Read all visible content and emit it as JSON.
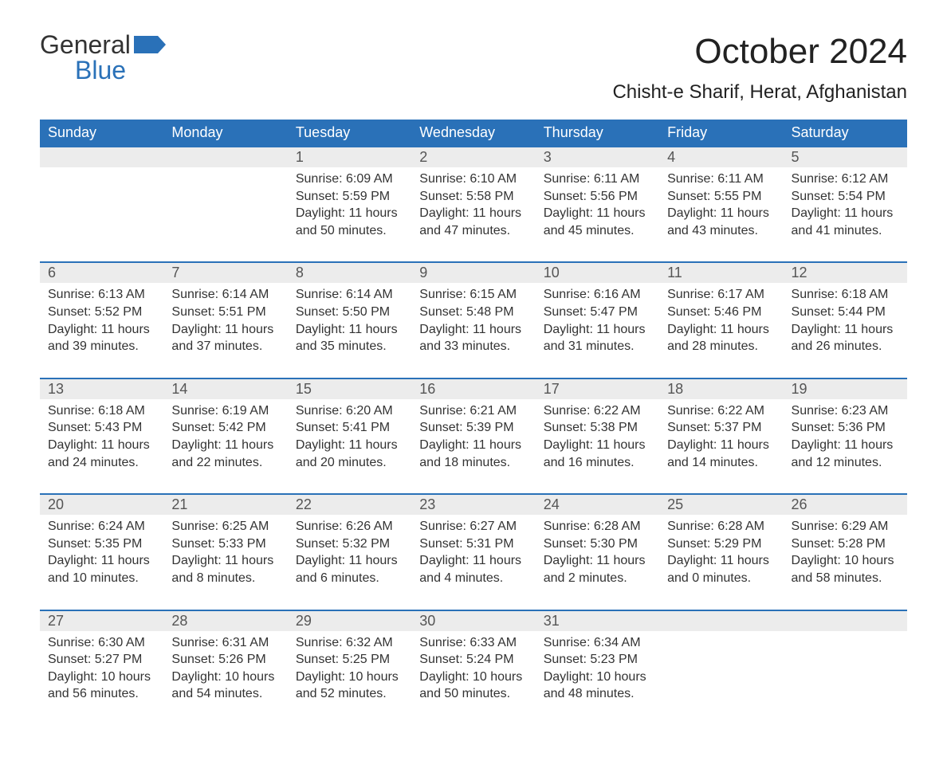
{
  "logo": {
    "text_top": "General",
    "text_bottom": "Blue"
  },
  "title": "October 2024",
  "location": "Chisht-e Sharif, Herat, Afghanistan",
  "colors": {
    "header_bg": "#2a71b8",
    "header_fg": "#ffffff",
    "daynum_bg": "#ececec",
    "row_separator": "#2a71b8",
    "text": "#333333",
    "logo_blue": "#2a71b8"
  },
  "layout": {
    "columns": 7,
    "rows": 5,
    "day_header_fontsize": 18,
    "daynum_fontsize": 18,
    "detail_fontsize": 16,
    "title_fontsize": 44,
    "location_fontsize": 24
  },
  "day_headers": [
    "Sunday",
    "Monday",
    "Tuesday",
    "Wednesday",
    "Thursday",
    "Friday",
    "Saturday"
  ],
  "weeks": [
    [
      null,
      null,
      {
        "n": "1",
        "sunrise": "Sunrise: 6:09 AM",
        "sunset": "Sunset: 5:59 PM",
        "daylight": "Daylight: 11 hours and 50 minutes."
      },
      {
        "n": "2",
        "sunrise": "Sunrise: 6:10 AM",
        "sunset": "Sunset: 5:58 PM",
        "daylight": "Daylight: 11 hours and 47 minutes."
      },
      {
        "n": "3",
        "sunrise": "Sunrise: 6:11 AM",
        "sunset": "Sunset: 5:56 PM",
        "daylight": "Daylight: 11 hours and 45 minutes."
      },
      {
        "n": "4",
        "sunrise": "Sunrise: 6:11 AM",
        "sunset": "Sunset: 5:55 PM",
        "daylight": "Daylight: 11 hours and 43 minutes."
      },
      {
        "n": "5",
        "sunrise": "Sunrise: 6:12 AM",
        "sunset": "Sunset: 5:54 PM",
        "daylight": "Daylight: 11 hours and 41 minutes."
      }
    ],
    [
      {
        "n": "6",
        "sunrise": "Sunrise: 6:13 AM",
        "sunset": "Sunset: 5:52 PM",
        "daylight": "Daylight: 11 hours and 39 minutes."
      },
      {
        "n": "7",
        "sunrise": "Sunrise: 6:14 AM",
        "sunset": "Sunset: 5:51 PM",
        "daylight": "Daylight: 11 hours and 37 minutes."
      },
      {
        "n": "8",
        "sunrise": "Sunrise: 6:14 AM",
        "sunset": "Sunset: 5:50 PM",
        "daylight": "Daylight: 11 hours and 35 minutes."
      },
      {
        "n": "9",
        "sunrise": "Sunrise: 6:15 AM",
        "sunset": "Sunset: 5:48 PM",
        "daylight": "Daylight: 11 hours and 33 minutes."
      },
      {
        "n": "10",
        "sunrise": "Sunrise: 6:16 AM",
        "sunset": "Sunset: 5:47 PM",
        "daylight": "Daylight: 11 hours and 31 minutes."
      },
      {
        "n": "11",
        "sunrise": "Sunrise: 6:17 AM",
        "sunset": "Sunset: 5:46 PM",
        "daylight": "Daylight: 11 hours and 28 minutes."
      },
      {
        "n": "12",
        "sunrise": "Sunrise: 6:18 AM",
        "sunset": "Sunset: 5:44 PM",
        "daylight": "Daylight: 11 hours and 26 minutes."
      }
    ],
    [
      {
        "n": "13",
        "sunrise": "Sunrise: 6:18 AM",
        "sunset": "Sunset: 5:43 PM",
        "daylight": "Daylight: 11 hours and 24 minutes."
      },
      {
        "n": "14",
        "sunrise": "Sunrise: 6:19 AM",
        "sunset": "Sunset: 5:42 PM",
        "daylight": "Daylight: 11 hours and 22 minutes."
      },
      {
        "n": "15",
        "sunrise": "Sunrise: 6:20 AM",
        "sunset": "Sunset: 5:41 PM",
        "daylight": "Daylight: 11 hours and 20 minutes."
      },
      {
        "n": "16",
        "sunrise": "Sunrise: 6:21 AM",
        "sunset": "Sunset: 5:39 PM",
        "daylight": "Daylight: 11 hours and 18 minutes."
      },
      {
        "n": "17",
        "sunrise": "Sunrise: 6:22 AM",
        "sunset": "Sunset: 5:38 PM",
        "daylight": "Daylight: 11 hours and 16 minutes."
      },
      {
        "n": "18",
        "sunrise": "Sunrise: 6:22 AM",
        "sunset": "Sunset: 5:37 PM",
        "daylight": "Daylight: 11 hours and 14 minutes."
      },
      {
        "n": "19",
        "sunrise": "Sunrise: 6:23 AM",
        "sunset": "Sunset: 5:36 PM",
        "daylight": "Daylight: 11 hours and 12 minutes."
      }
    ],
    [
      {
        "n": "20",
        "sunrise": "Sunrise: 6:24 AM",
        "sunset": "Sunset: 5:35 PM",
        "daylight": "Daylight: 11 hours and 10 minutes."
      },
      {
        "n": "21",
        "sunrise": "Sunrise: 6:25 AM",
        "sunset": "Sunset: 5:33 PM",
        "daylight": "Daylight: 11 hours and 8 minutes."
      },
      {
        "n": "22",
        "sunrise": "Sunrise: 6:26 AM",
        "sunset": "Sunset: 5:32 PM",
        "daylight": "Daylight: 11 hours and 6 minutes."
      },
      {
        "n": "23",
        "sunrise": "Sunrise: 6:27 AM",
        "sunset": "Sunset: 5:31 PM",
        "daylight": "Daylight: 11 hours and 4 minutes."
      },
      {
        "n": "24",
        "sunrise": "Sunrise: 6:28 AM",
        "sunset": "Sunset: 5:30 PM",
        "daylight": "Daylight: 11 hours and 2 minutes."
      },
      {
        "n": "25",
        "sunrise": "Sunrise: 6:28 AM",
        "sunset": "Sunset: 5:29 PM",
        "daylight": "Daylight: 11 hours and 0 minutes."
      },
      {
        "n": "26",
        "sunrise": "Sunrise: 6:29 AM",
        "sunset": "Sunset: 5:28 PM",
        "daylight": "Daylight: 10 hours and 58 minutes."
      }
    ],
    [
      {
        "n": "27",
        "sunrise": "Sunrise: 6:30 AM",
        "sunset": "Sunset: 5:27 PM",
        "daylight": "Daylight: 10 hours and 56 minutes."
      },
      {
        "n": "28",
        "sunrise": "Sunrise: 6:31 AM",
        "sunset": "Sunset: 5:26 PM",
        "daylight": "Daylight: 10 hours and 54 minutes."
      },
      {
        "n": "29",
        "sunrise": "Sunrise: 6:32 AM",
        "sunset": "Sunset: 5:25 PM",
        "daylight": "Daylight: 10 hours and 52 minutes."
      },
      {
        "n": "30",
        "sunrise": "Sunrise: 6:33 AM",
        "sunset": "Sunset: 5:24 PM",
        "daylight": "Daylight: 10 hours and 50 minutes."
      },
      {
        "n": "31",
        "sunrise": "Sunrise: 6:34 AM",
        "sunset": "Sunset: 5:23 PM",
        "daylight": "Daylight: 10 hours and 48 minutes."
      },
      null,
      null
    ]
  ]
}
